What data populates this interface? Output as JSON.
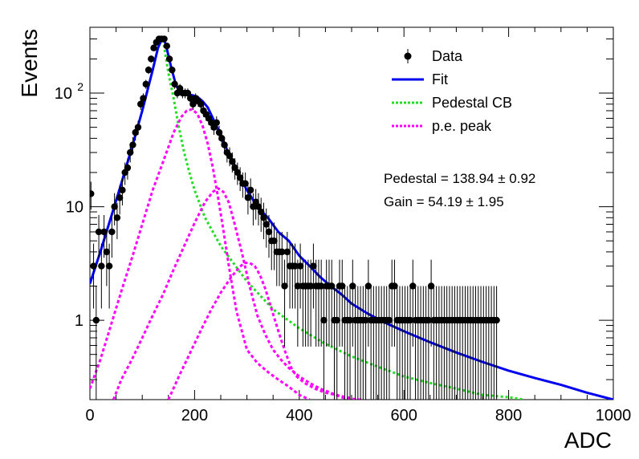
{
  "chart_data": {
    "type": "scatter",
    "title": "",
    "xlabel": "ADC",
    "ylabel": "Events",
    "xlim": [
      0,
      1000
    ],
    "ylim": [
      0.2,
      380
    ],
    "y_scale": "log",
    "grid": false,
    "legend_position": "top-right",
    "x_ticks": [
      0,
      200,
      400,
      600,
      800,
      1000
    ],
    "x_tick_labels": [
      "0",
      "200",
      "400",
      "600",
      "800",
      "1000"
    ],
    "y_ticks": [
      1,
      10,
      100
    ],
    "y_tick_labels": [
      "1",
      "10",
      "10^2"
    ],
    "legend": [
      {
        "label": "Data",
        "marker": "point-errorbar",
        "color": "#000000"
      },
      {
        "label": "Fit",
        "style": "solid",
        "color": "#0000ee"
      },
      {
        "label": "Pedestal CB",
        "style": "dotted",
        "color": "#22dd22"
      },
      {
        "label": "p.e. peak",
        "style": "dotted",
        "color": "#ff00ff"
      }
    ],
    "annotations": [
      {
        "text": "Pedestal = 138.94 ± 0.92"
      },
      {
        "text": "Gain = 54.19 ± 1.95"
      }
    ],
    "fit_parameters": {
      "pedestal": 138.94,
      "pedestal_error": 0.92,
      "gain": 54.19,
      "gain_error": 1.95
    },
    "series": [
      {
        "name": "Data",
        "kind": "points",
        "x": [
          2,
          7,
          12,
          17,
          22,
          27,
          32,
          37,
          42,
          47,
          52,
          57,
          62,
          67,
          72,
          77,
          82,
          87,
          92,
          97,
          102,
          107,
          112,
          117,
          122,
          127,
          132,
          137,
          142,
          147,
          152,
          157,
          162,
          167,
          172,
          177,
          182,
          187,
          192,
          197,
          202,
          207,
          212,
          217,
          222,
          227,
          232,
          237,
          242,
          247,
          252,
          257,
          262,
          267,
          272,
          277,
          282,
          287,
          292,
          297,
          302,
          307,
          312,
          317,
          322,
          327,
          332,
          337,
          342,
          347,
          352,
          357,
          362,
          367,
          372,
          377,
          382,
          387,
          392,
          397,
          402,
          407,
          412,
          417,
          422,
          427,
          432,
          437,
          442,
          447,
          452,
          457,
          462,
          467,
          472,
          477,
          482,
          487,
          492,
          497,
          502,
          507,
          512,
          517,
          522,
          527,
          532,
          537,
          542,
          547,
          552,
          557,
          562,
          567,
          572,
          577,
          582,
          587,
          592,
          597,
          602,
          607,
          612,
          617,
          622,
          627,
          632,
          637,
          642,
          647,
          652,
          657,
          662,
          667,
          672,
          677,
          682,
          687,
          692,
          697,
          702,
          707,
          712,
          717,
          722,
          727,
          732,
          737,
          742,
          747,
          752,
          757,
          762,
          767,
          772,
          777
        ],
        "y": [
          13,
          3,
          1,
          6,
          3,
          6,
          4,
          3,
          6,
          10,
          8,
          12,
          14,
          20,
          22,
          30,
          35,
          45,
          50,
          80,
          90,
          120,
          160,
          200,
          250,
          280,
          300,
          300,
          300,
          260,
          200,
          160,
          120,
          100,
          110,
          100,
          100,
          100,
          90,
          80,
          90,
          85,
          80,
          70,
          65,
          60,
          55,
          50,
          55,
          45,
          40,
          35,
          30,
          28,
          25,
          22,
          20,
          18,
          16,
          16,
          12,
          14,
          10,
          11,
          10,
          9,
          8,
          7,
          6,
          5,
          5,
          4,
          4,
          4,
          2,
          4,
          3,
          3,
          3,
          2,
          3,
          2,
          2,
          2,
          2,
          3,
          2,
          2,
          2,
          1,
          2,
          2,
          2,
          1,
          1,
          2,
          2,
          1,
          1,
          1,
          2,
          1,
          1,
          1,
          1,
          1,
          2,
          1,
          1,
          1,
          1,
          1,
          1,
          1,
          1,
          2,
          2,
          1,
          1,
          1,
          1,
          1,
          1,
          2,
          1,
          1,
          1,
          1,
          1,
          1,
          2,
          1,
          1,
          1,
          1,
          1,
          1,
          1,
          1,
          1,
          1,
          1,
          1,
          1,
          1,
          1,
          1,
          1,
          1,
          1,
          1,
          1,
          1,
          1,
          1,
          1
        ]
      },
      {
        "name": "Fit",
        "kind": "line",
        "x": [
          0,
          20,
          40,
          60,
          80,
          100,
          120,
          130,
          138.94,
          145,
          155,
          165,
          175,
          185,
          195,
          205,
          215,
          225,
          235,
          245,
          260,
          275,
          290,
          300,
          320,
          340,
          360,
          380,
          400,
          420,
          440,
          460,
          480,
          500,
          530,
          560,
          600,
          650,
          700,
          750,
          800,
          850,
          900,
          950,
          1000
        ],
        "y": [
          2.1,
          4.0,
          8.0,
          16,
          33,
          70,
          160,
          250,
          310,
          270,
          170,
          115,
          100,
          98,
          96,
          93,
          85,
          75,
          60,
          48,
          33,
          24,
          17,
          14,
          10,
          8,
          6,
          5,
          3.7,
          3.0,
          2.4,
          2.0,
          1.7,
          1.4,
          1.15,
          0.97,
          0.8,
          0.64,
          0.52,
          0.43,
          0.36,
          0.31,
          0.27,
          0.23,
          0.2
        ]
      },
      {
        "name": "Pedestal CB",
        "kind": "line",
        "x": [
          0,
          20,
          40,
          60,
          80,
          100,
          120,
          130,
          138.94,
          150,
          160,
          170,
          180,
          190,
          200,
          220,
          250,
          300,
          350,
          400,
          450,
          500,
          550,
          600,
          650,
          700,
          750,
          800,
          830
        ],
        "y": [
          2.1,
          4.0,
          8.0,
          16,
          33,
          70,
          160,
          250,
          310,
          150,
          90,
          50,
          30,
          20,
          14,
          8,
          4.5,
          2.2,
          1.25,
          0.85,
          0.62,
          0.48,
          0.39,
          0.32,
          0.28,
          0.25,
          0.22,
          0.21,
          0.2
        ]
      },
      {
        "name": "p.e. peak 1",
        "kind": "line",
        "x": [
          0,
          20,
          40,
          60,
          80,
          100,
          120,
          140,
          160,
          175,
          185,
          195,
          205,
          215,
          225,
          235,
          245,
          255,
          265,
          280,
          300,
          320,
          340,
          360,
          380,
          400,
          420
        ],
        "y": [
          0.25,
          0.45,
          0.9,
          1.8,
          3.5,
          7,
          14,
          25,
          45,
          62,
          70,
          72,
          66,
          52,
          36,
          22,
          12,
          6.2,
          3.1,
          1.2,
          0.55,
          0.42,
          0.35,
          0.3,
          0.26,
          0.22,
          0.2
        ]
      },
      {
        "name": "p.e. peak 2",
        "kind": "line",
        "x": [
          45,
          60,
          80,
          100,
          120,
          140,
          160,
          180,
          200,
          220,
          235,
          245,
          255,
          265,
          275,
          290,
          305,
          320,
          335,
          350,
          365,
          380,
          400,
          420,
          440,
          460,
          480,
          500,
          510
        ],
        "y": [
          0.2,
          0.3,
          0.45,
          0.7,
          1.1,
          1.7,
          2.8,
          4.5,
          7.2,
          11,
          13.5,
          14.5,
          13.5,
          11,
          7.5,
          4.0,
          2.0,
          1.1,
          0.75,
          0.55,
          0.45,
          0.38,
          0.32,
          0.28,
          0.25,
          0.23,
          0.21,
          0.2,
          0.2
        ]
      },
      {
        "name": "p.e. peak 3",
        "kind": "line",
        "x": [
          150,
          170,
          190,
          210,
          230,
          250,
          270,
          285,
          295,
          305,
          315,
          325,
          335,
          345,
          355,
          365,
          375,
          385,
          395,
          410,
          430,
          450,
          470,
          490,
          510,
          520
        ],
        "y": [
          0.2,
          0.32,
          0.5,
          0.78,
          1.2,
          1.75,
          2.4,
          2.9,
          3.2,
          3.2,
          3.0,
          2.5,
          1.9,
          1.35,
          0.95,
          0.68,
          0.5,
          0.38,
          0.32,
          0.28,
          0.25,
          0.23,
          0.22,
          0.21,
          0.2,
          0.2
        ]
      }
    ]
  }
}
